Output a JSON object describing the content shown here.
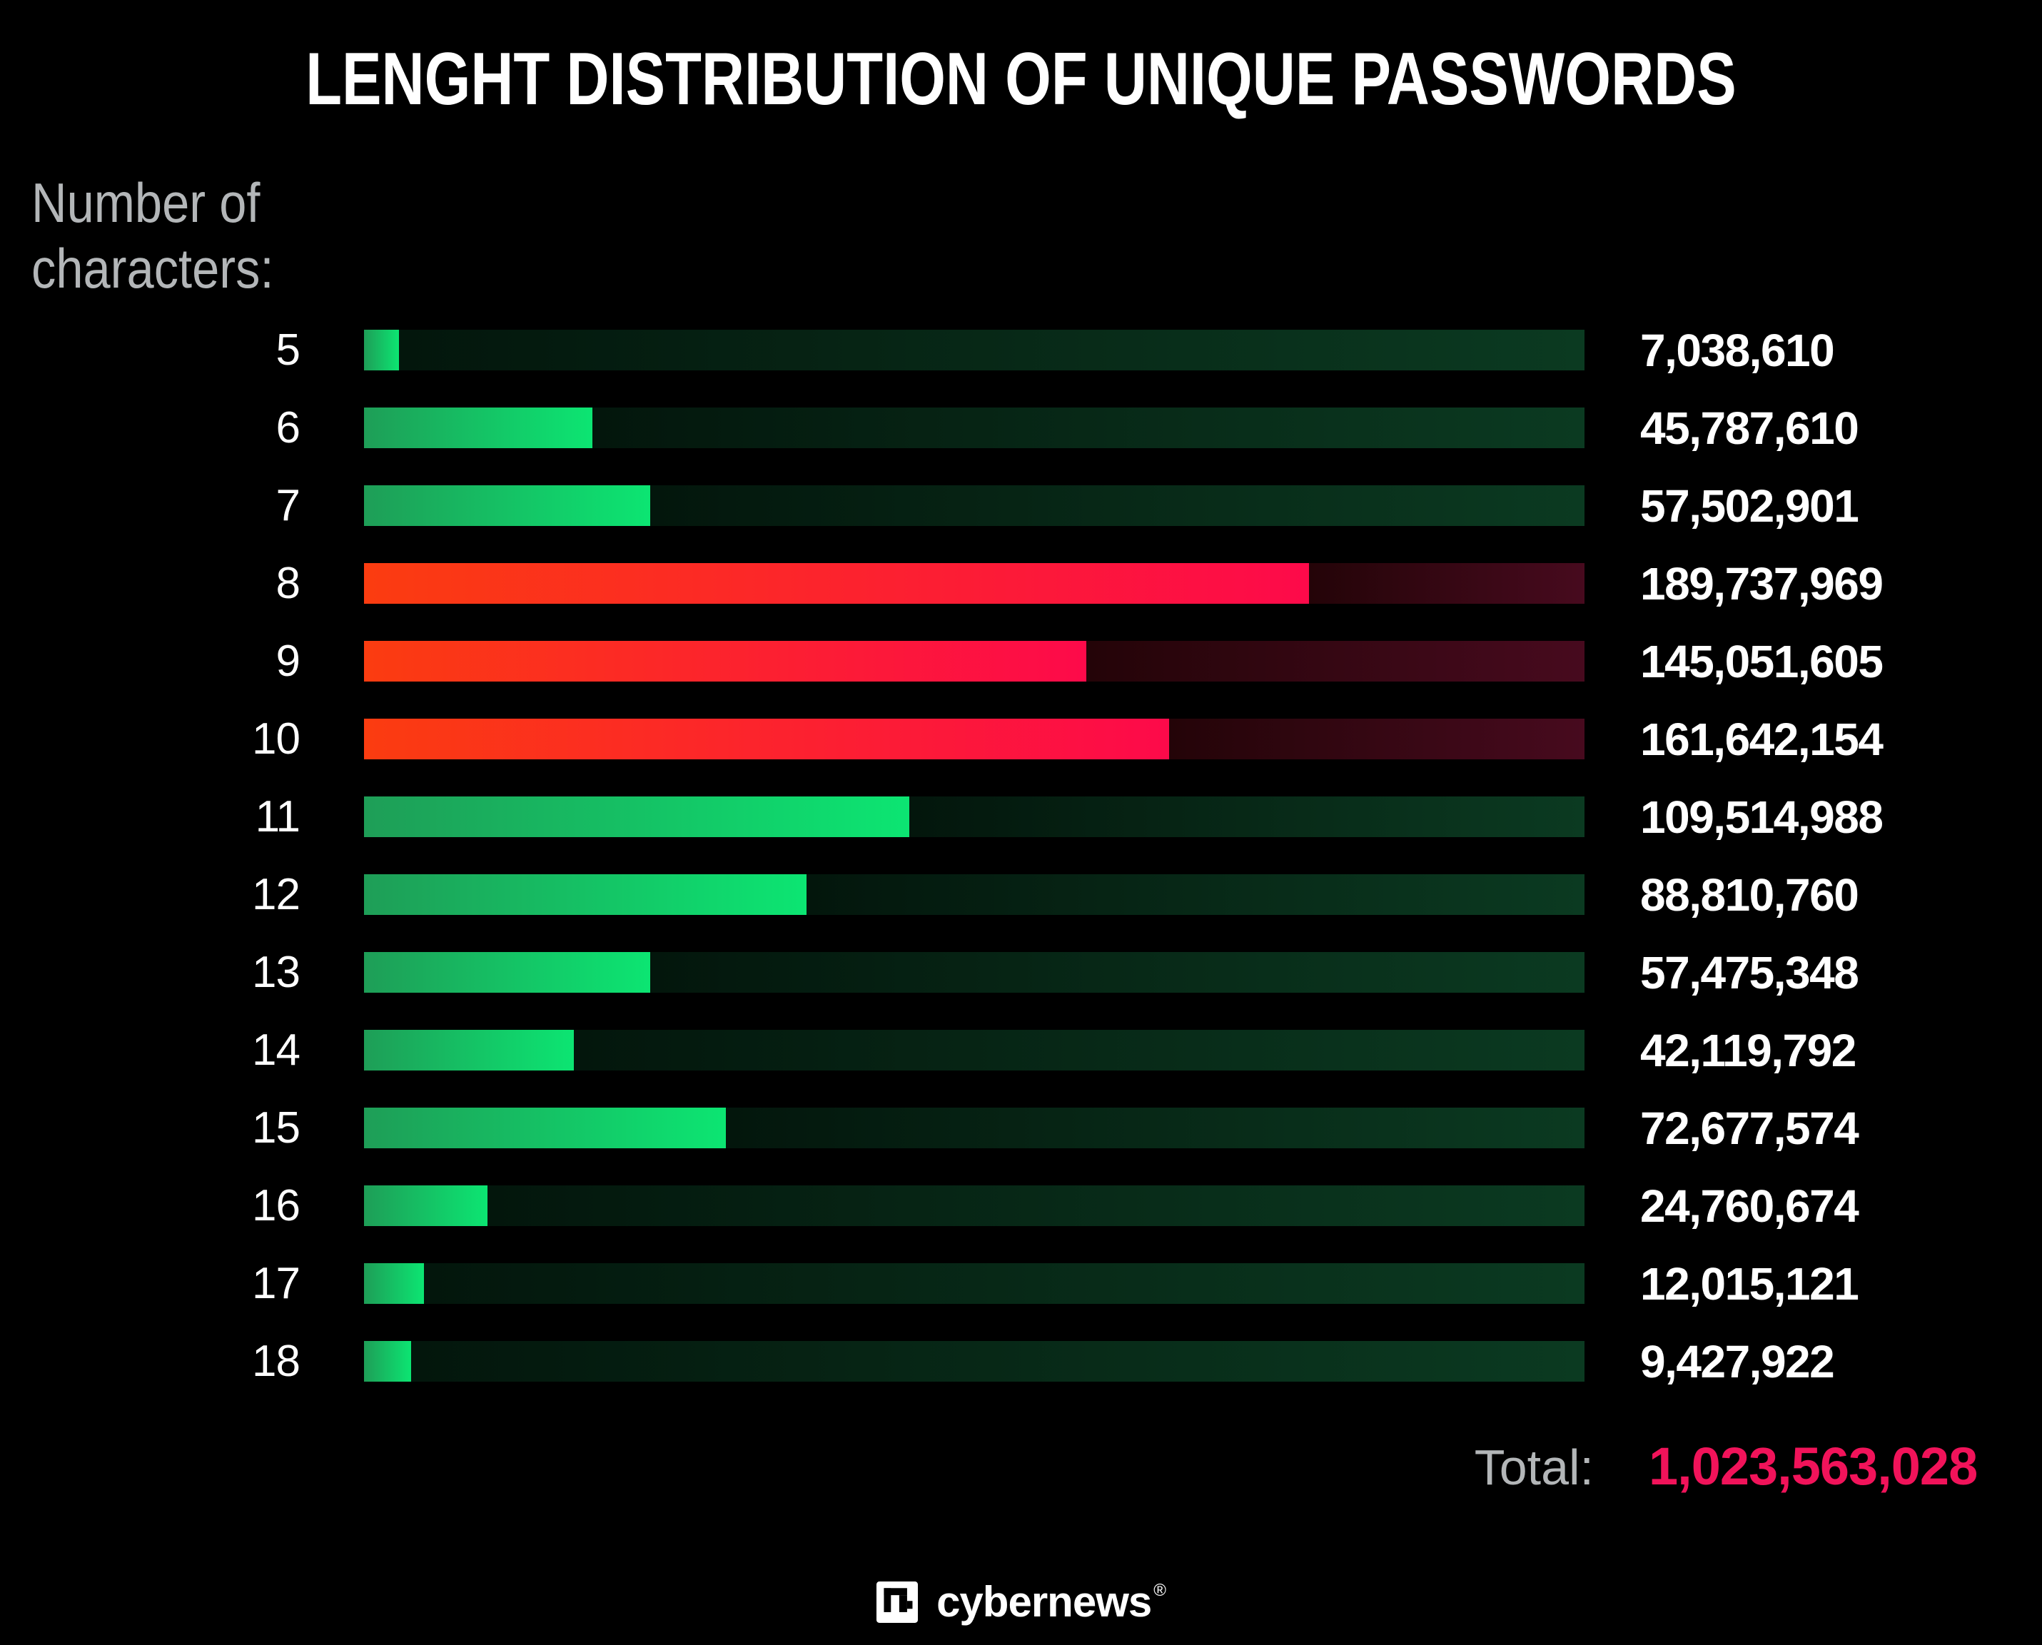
{
  "title": "LENGHT DISTRIBUTION OF UNIQUE PASSWORDS",
  "axis_label": {
    "line1": "Number of",
    "line2": "characters:"
  },
  "chart_data": {
    "type": "bar",
    "orientation": "horizontal",
    "title": "LENGHT DISTRIBUTION OF UNIQUE PASSWORDS",
    "ylabel": "Number of characters",
    "categories": [
      "5",
      "6",
      "7",
      "8",
      "9",
      "10",
      "11",
      "12",
      "13",
      "14",
      "15",
      "16",
      "17",
      "18"
    ],
    "values": [
      7038610,
      45787610,
      57502901,
      189737969,
      145051605,
      161642154,
      109514988,
      88810760,
      57475348,
      42119792,
      72677574,
      24760674,
      12015121,
      9427922
    ],
    "value_labels": [
      "7,038,610",
      "45,787,610",
      "57,502,901",
      "189,737,969",
      "145,051,605",
      "161,642,154",
      "109,514,988",
      "88,810,760",
      "57,475,348",
      "42,119,792",
      "72,677,574",
      "24,760,674",
      "12,015,121",
      "9,427,922"
    ],
    "highlighted_categories": [
      "8",
      "9",
      "10"
    ],
    "scale_max": 245000000,
    "total": 1023563028,
    "grid": false,
    "legend": false,
    "colors": {
      "background": "#000000",
      "text": "#ffffff",
      "muted_text": "#b3b6b8",
      "total_label": "#b3b6b8",
      "total_value": "#f1135a",
      "green_fill_start": "#1e9e57",
      "green_fill_end": "#0ce572",
      "green_track_start": "#03160c",
      "green_track_end": "#0b3a21",
      "red_fill_start": "#fb3c10",
      "red_fill_end": "#fd0a4a",
      "red_track_start": "#240408",
      "red_track_end": "#470a1e"
    }
  },
  "total": {
    "label": "Total:",
    "value": "1,023,563,028"
  },
  "footer": {
    "brand": "cybernews",
    "registered": "®"
  }
}
